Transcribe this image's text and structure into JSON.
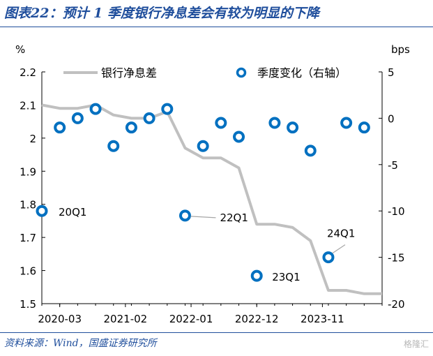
{
  "title": "图表22：预计 1 季度银行净息差会有较为明显的下降",
  "source": "资料来源：Wind，国盛证券研究所",
  "watermark": "格隆汇",
  "chart_data": {
    "type": "line",
    "left_axis": {
      "unit_label": "%",
      "ylim": [
        1.5,
        2.2
      ],
      "ticks": [
        "1.5",
        "1.6",
        "1.7",
        "1.8",
        "1.9",
        "2",
        "2.1",
        "2.2"
      ]
    },
    "right_axis": {
      "unit_label": "bps",
      "ylim": [
        -20,
        5
      ],
      "ticks": [
        "-20",
        "-15",
        "-10",
        "-5",
        "0",
        "5"
      ]
    },
    "x_ticks": [
      "2020-03",
      "2021-02",
      "2022-01",
      "2022-12",
      "2023-11"
    ],
    "legend_position": "top",
    "series": [
      {
        "name": "银行净息差",
        "kind": "line",
        "axis": "left",
        "color": "#c0c0c0",
        "x": [
          "2019-12",
          "2020-03",
          "2020-06",
          "2020-09",
          "2020-12",
          "2021-03",
          "2021-06",
          "2021-09",
          "2021-12",
          "2022-03",
          "2022-06",
          "2022-09",
          "2022-12",
          "2023-03",
          "2023-06",
          "2023-09",
          "2023-12",
          "2024-03",
          "2024-06",
          "2024-09"
        ],
        "values": [
          2.1,
          2.09,
          2.09,
          2.1,
          2.07,
          2.06,
          2.06,
          2.08,
          1.97,
          1.94,
          1.94,
          1.91,
          1.74,
          1.74,
          1.73,
          1.69,
          1.54,
          1.54,
          1.53,
          1.53
        ]
      },
      {
        "name": "季度变化（右轴）",
        "kind": "scatter",
        "axis": "right",
        "color": "#0070c0",
        "x": [
          "2019-12",
          "2020-03",
          "2020-06",
          "2020-09",
          "2020-12",
          "2021-03",
          "2021-06",
          "2021-09",
          "2021-12",
          "2022-03",
          "2022-06",
          "2022-09",
          "2022-12",
          "2023-03",
          "2023-06",
          "2023-09",
          "2023-12",
          "2024-03",
          "2024-06"
        ],
        "values": [
          -10,
          -1,
          0,
          1,
          -3,
          -1,
          0,
          1,
          -10.5,
          -3,
          -0.5,
          -2,
          -17,
          -0.5,
          -1,
          -3.5,
          -15,
          -0.5,
          -1
        ]
      }
    ],
    "annotations": [
      {
        "text": "20Q1",
        "x": "2019-12",
        "value": -10
      },
      {
        "text": "22Q1",
        "x": "2021-12",
        "value": -10.5
      },
      {
        "text": "23Q1",
        "x": "2022-12",
        "value": -17
      },
      {
        "text": "24Q1",
        "x": "2023-12",
        "value": -15
      }
    ]
  }
}
